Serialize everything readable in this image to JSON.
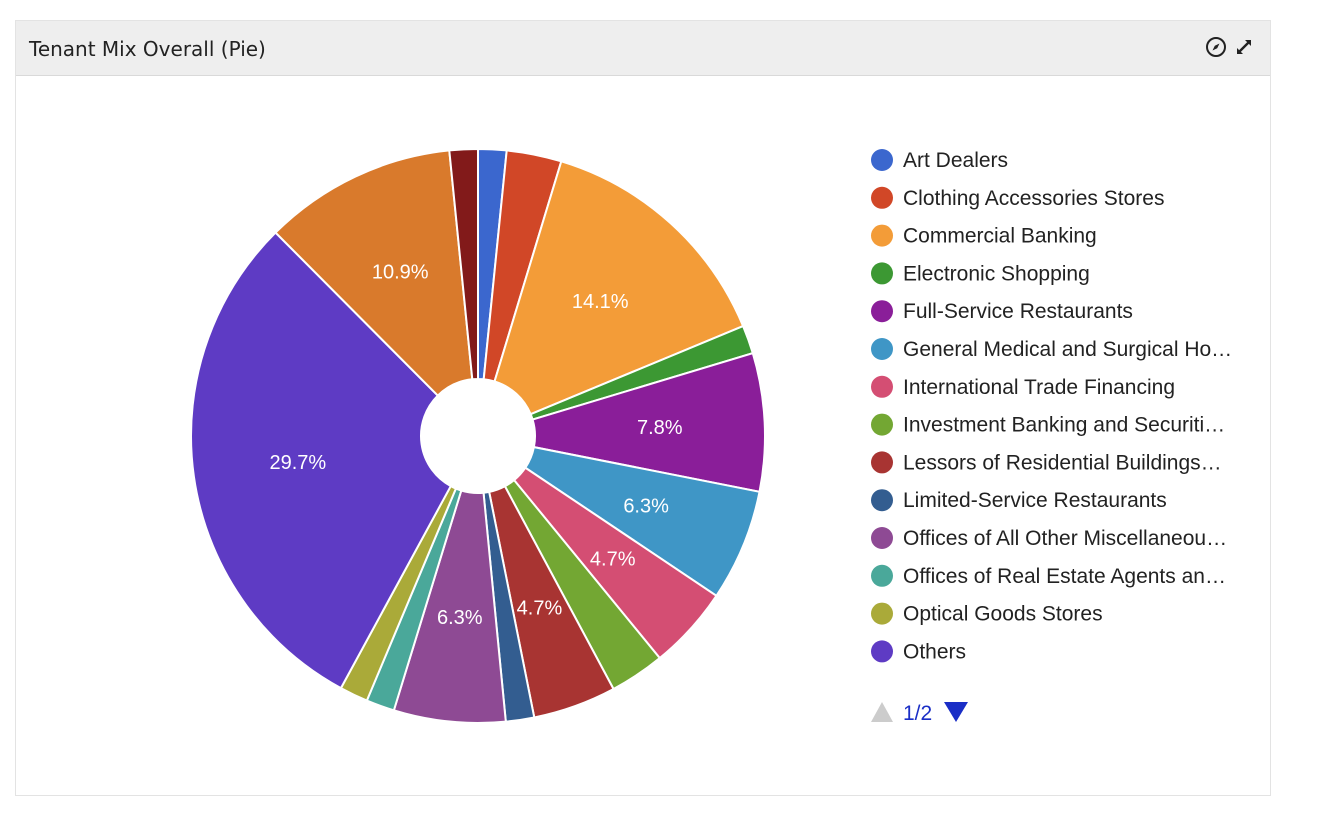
{
  "panel": {
    "title": "Tenant Mix Overall (Pie)",
    "icons": [
      "compass-icon",
      "expand-icon"
    ]
  },
  "legend": {
    "page_indicator": "1/2",
    "placement": "right"
  },
  "chart_data": {
    "type": "pie",
    "donut": true,
    "title": "",
    "slices": [
      {
        "label": "Art Dealers",
        "value": 1.6,
        "color": "#3b67ce",
        "display_label": ""
      },
      {
        "label": "Clothing Accessories Stores",
        "value": 3.1,
        "color": "#d14727",
        "display_label": ""
      },
      {
        "label": "Commercial Banking",
        "value": 14.1,
        "color": "#f39c38",
        "display_label": "14.1%"
      },
      {
        "label": "Electronic Shopping",
        "value": 1.6,
        "color": "#3c9833",
        "display_label": ""
      },
      {
        "label": "Full-Service Restaurants",
        "value": 7.8,
        "color": "#8a1e99",
        "display_label": "7.8%"
      },
      {
        "label": "General Medical and Surgical Ho…",
        "value": 6.3,
        "color": "#3f96c6",
        "display_label": "6.3%"
      },
      {
        "label": "International Trade Financing",
        "value": 4.7,
        "color": "#d44e73",
        "display_label": "4.7%"
      },
      {
        "label": "Investment Banking and Securiti…",
        "value": 3.1,
        "color": "#73a733",
        "display_label": ""
      },
      {
        "label": "Lessors of Residential Buildings…",
        "value": 4.7,
        "color": "#a83432",
        "display_label": "4.7%"
      },
      {
        "label": "Limited-Service Restaurants",
        "value": 1.6,
        "color": "#335d90",
        "display_label": ""
      },
      {
        "label": "Offices of All Other Miscellaneou…",
        "value": 6.3,
        "color": "#8e4a94",
        "display_label": "6.3%"
      },
      {
        "label": "Offices of Real Estate Agents an…",
        "value": 1.6,
        "color": "#4aa89a",
        "display_label": ""
      },
      {
        "label": "Optical Goods Stores",
        "value": 1.6,
        "color": "#aaaa39",
        "display_label": ""
      },
      {
        "label": "Others",
        "value": 29.7,
        "color": "#5e3bc4",
        "display_label": "29.7%"
      },
      {
        "label": "",
        "value": 10.9,
        "color": "#d97a2c",
        "display_label": "10.9%",
        "in_legend": false
      },
      {
        "label": "",
        "value": 1.6,
        "color": "#821a1a",
        "display_label": "",
        "in_legend": false
      }
    ]
  },
  "colors": {
    "header_bg": "#eeeeee",
    "pager_active": "#1a2ec6",
    "pager_inactive": "#cccccc"
  }
}
